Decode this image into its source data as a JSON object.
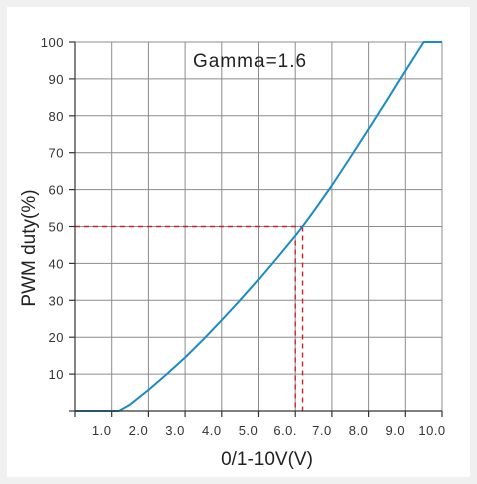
{
  "chart_data": {
    "type": "line",
    "title": "",
    "annotation": "Gamma=1.6",
    "xlabel": "0/1-10V(V)",
    "ylabel": "PWM duty(%)",
    "xlim": [
      0,
      10
    ],
    "ylim": [
      0,
      100
    ],
    "grid": true,
    "x_ticks": [
      1,
      2,
      3,
      4,
      5,
      6,
      7,
      8,
      9,
      10
    ],
    "x_tick_labels": [
      "1.0",
      "2.0",
      "3.0",
      "4.0",
      "5.0",
      "6.0.",
      "7.0",
      "8.0",
      "9.0",
      "10.0"
    ],
    "y_ticks": [
      10,
      20,
      30,
      40,
      50,
      60,
      70,
      80,
      90,
      100
    ],
    "y_tick_labels": [
      "10",
      "20",
      "30",
      "40",
      "50",
      "60",
      "70",
      "80",
      "90",
      "100"
    ],
    "series": [
      {
        "color": "#1a8cc4",
        "x": [
          0,
          1.2,
          1.5,
          2.0,
          2.5,
          3.0,
          3.5,
          4.0,
          4.5,
          5.0,
          5.5,
          6.0,
          6.2,
          6.5,
          7.0,
          7.5,
          8.0,
          8.5,
          9.0,
          9.5,
          10.0
        ],
        "y": [
          0,
          0,
          1.7,
          5.7,
          10.0,
          14.5,
          19.4,
          24.6,
          30.0,
          35.6,
          41.5,
          47.5,
          50,
          54.1,
          61.1,
          68.7,
          76.4,
          84.2,
          92.2,
          100,
          100
        ]
      }
    ],
    "reference_lines": {
      "color": "#cc2222",
      "horizontal_y": 50,
      "vertical_x": 6.2,
      "second_vertical_x": 6.0
    }
  }
}
